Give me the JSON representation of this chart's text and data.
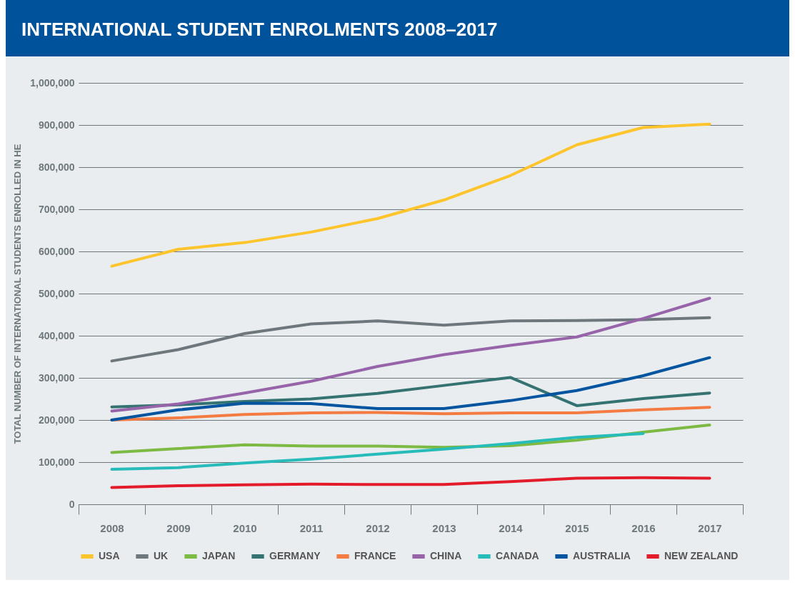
{
  "chart_data": {
    "type": "line",
    "title": "INTERNATIONAL STUDENT ENROLMENTS 2008–2017",
    "ylabel": "TOTAL NUMBER OF INTERNATIONAL STUDENTS ENROLLED IN HE",
    "categories": [
      "2008",
      "2009",
      "2010",
      "2011",
      "2012",
      "2013",
      "2014",
      "2015",
      "2016",
      "2017"
    ],
    "ylim": [
      0,
      1000000
    ],
    "yticks": [
      0,
      {
        "value": 100000,
        "label": "100,000"
      },
      {
        "value": 200000,
        "label": "200,000"
      },
      {
        "value": 300000,
        "label": "300,000"
      },
      {
        "value": 400000,
        "label": "400,000"
      },
      {
        "value": 500000,
        "label": "500,000"
      },
      {
        "value": 600000,
        "label": "600,000"
      },
      {
        "value": 700000,
        "label": "700,000"
      },
      {
        "value": 800000,
        "label": "800,000"
      },
      {
        "value": 900000,
        "label": "900,000"
      },
      {
        "value": 1000000,
        "label": "1,000,000"
      }
    ],
    "grid": "y",
    "legend": "bottom",
    "line_style": "solid",
    "marker": "none",
    "series": [
      {
        "name": "USA",
        "color": "#fdc52b",
        "values": [
          565000,
          605000,
          621000,
          646000,
          678000,
          722000,
          780000,
          853000,
          894000,
          902000
        ]
      },
      {
        "name": "UK",
        "color": "#6d777c",
        "values": [
          340000,
          367000,
          405000,
          428000,
          435000,
          425000,
          435000,
          436000,
          438000,
          443000
        ]
      },
      {
        "name": "JAPAN",
        "color": "#7dba43",
        "values": [
          123000,
          132000,
          141000,
          138000,
          138000,
          135000,
          139000,
          152000,
          171000,
          188000
        ]
      },
      {
        "name": "GERMANY",
        "color": "#357272",
        "values": [
          231000,
          236000,
          244000,
          250000,
          263000,
          282000,
          301000,
          234000,
          251000,
          264000
        ]
      },
      {
        "name": "FRANCE",
        "color": "#f47b42",
        "values": [
          200000,
          205000,
          213000,
          217000,
          218000,
          215000,
          217000,
          217000,
          224000,
          230000
        ]
      },
      {
        "name": "CHINA",
        "color": "#9763a9",
        "values": [
          221000,
          238000,
          264000,
          292000,
          327000,
          355000,
          377000,
          397000,
          441000,
          489000
        ]
      },
      {
        "name": "CANADA",
        "color": "#27bcb9",
        "values": [
          83000,
          87000,
          98000,
          107000,
          119000,
          131000,
          144000,
          159000,
          168000,
          null
        ]
      },
      {
        "name": "AUSTRALIA",
        "color": "#0054a0",
        "values": [
          200000,
          224000,
          240000,
          239000,
          227000,
          227000,
          246000,
          270000,
          305000,
          348000
        ]
      },
      {
        "name": "NEW ZEALAND",
        "color": "#e31b2b",
        "values": [
          40000,
          44000,
          46000,
          48000,
          47000,
          47000,
          54000,
          62000,
          63000,
          62000
        ]
      }
    ]
  }
}
